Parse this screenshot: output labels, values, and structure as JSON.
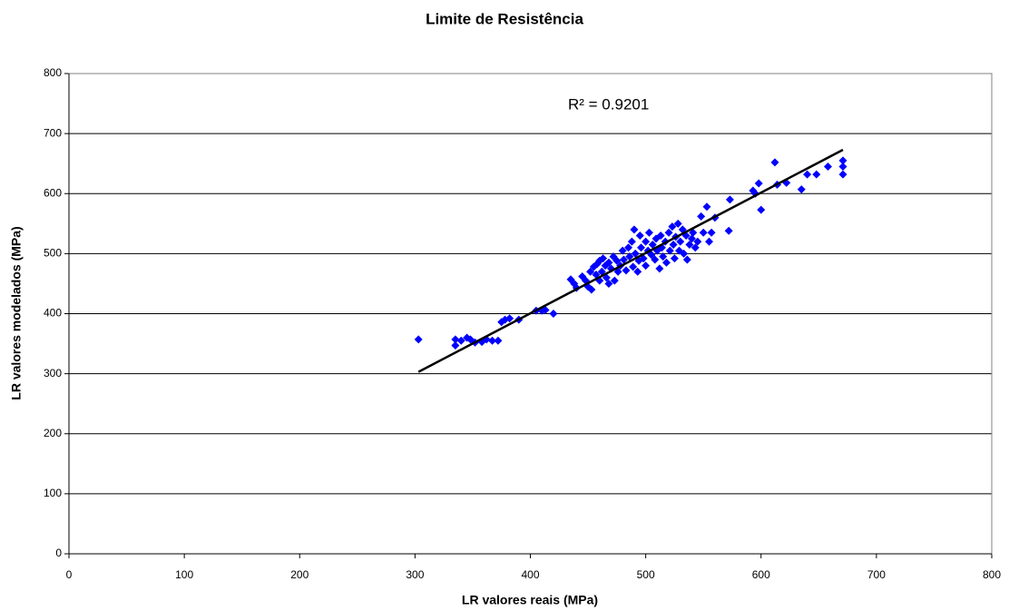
{
  "chart_data": {
    "type": "scatter",
    "title": "Limite de Resistência",
    "x_label": "LR valores reais (MPa)",
    "y_label": "LR valores modelados (MPa)",
    "annotation": "R² = 0.9201",
    "xlim": [
      0,
      800
    ],
    "ylim": [
      0,
      800
    ],
    "xticks": [
      0,
      100,
      200,
      300,
      400,
      500,
      600,
      700,
      800
    ],
    "yticks": [
      0,
      100,
      200,
      300,
      400,
      500,
      600,
      700,
      800
    ],
    "grid": true,
    "trendline": {
      "x": [
        303,
        671
      ],
      "y": [
        303,
        673
      ],
      "color": "#000000"
    },
    "series": [
      {
        "color": "#0000ff",
        "x": [
          303,
          335,
          335,
          340,
          345,
          348,
          352,
          358,
          362,
          367,
          372,
          375,
          378,
          382,
          390,
          405,
          410,
          413,
          420,
          435,
          438,
          440,
          445,
          448,
          450,
          452,
          453,
          455,
          457,
          458,
          460,
          460,
          462,
          463,
          465,
          466,
          468,
          468,
          470,
          472,
          473,
          475,
          476,
          478,
          480,
          481,
          483,
          485,
          486,
          488,
          489,
          490,
          491,
          493,
          494,
          495,
          496,
          498,
          500,
          500,
          502,
          503,
          505,
          506,
          508,
          509,
          510,
          512,
          513,
          514,
          515,
          517,
          518,
          520,
          521,
          523,
          524,
          525,
          526,
          528,
          529,
          530,
          532,
          533,
          535,
          536,
          538,
          540,
          541,
          543,
          545,
          548,
          550,
          553,
          555,
          557,
          560,
          572,
          573,
          593,
          595,
          598,
          600,
          612,
          614,
          622,
          635,
          640,
          648,
          658,
          671,
          671,
          671
        ],
        "values": [
          357,
          347,
          357,
          355,
          360,
          357,
          352,
          353,
          357,
          355,
          355,
          386,
          390,
          392,
          390,
          405,
          405,
          406,
          400,
          457,
          450,
          443,
          462,
          455,
          445,
          470,
          440,
          478,
          465,
          483,
          488,
          455,
          470,
          492,
          480,
          460,
          485,
          450,
          475,
          495,
          455,
          488,
          470,
          480,
          505,
          490,
          472,
          510,
          495,
          520,
          478,
          540,
          500,
          470,
          488,
          530,
          510,
          492,
          520,
          480,
          505,
          535,
          498,
          515,
          490,
          525,
          505,
          475,
          530,
          510,
          495,
          520,
          485,
          535,
          505,
          545,
          515,
          492,
          528,
          550,
          505,
          520,
          540,
          500,
          530,
          490,
          515,
          525,
          535,
          510,
          520,
          562,
          535,
          578,
          520,
          535,
          560,
          538,
          590,
          605,
          600,
          617,
          573,
          652,
          615,
          618,
          607,
          632,
          632,
          645,
          655,
          645,
          632
        ]
      }
    ]
  }
}
